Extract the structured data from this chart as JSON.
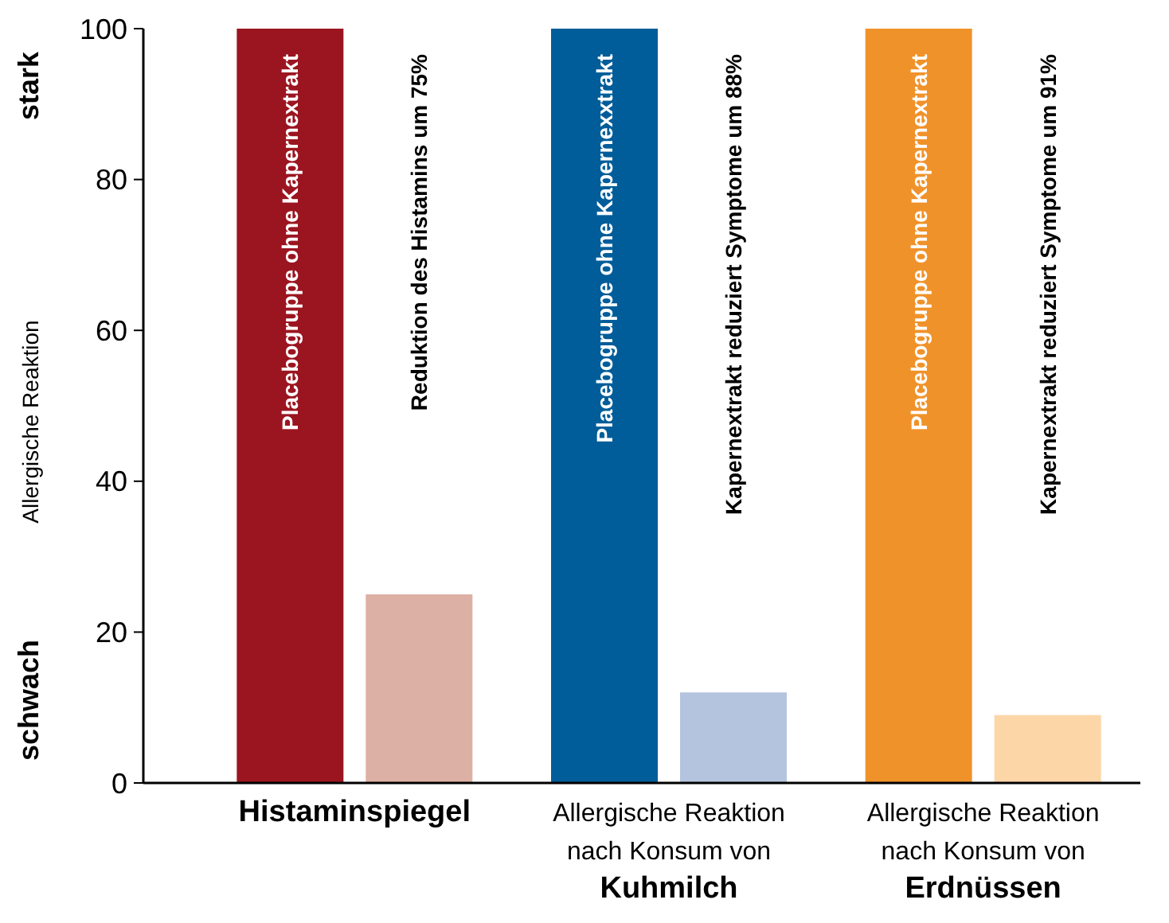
{
  "chart_data": {
    "type": "bar",
    "ylabel": "Allergische Reaktion",
    "categories": [
      "Histaminspiegel",
      "Allergische Reaktion\nnach Konsum von\nKuhmilch",
      "Allergische Reaktion\nnach Konsum von\nErdnüssen"
    ],
    "series": [
      {
        "colors": [
          "#9b1520",
          "#005d99",
          "#f0922a"
        ],
        "values": [
          100,
          100,
          100
        ]
      },
      {
        "colors": [
          "#dcb0a4",
          "#b4c4de",
          "#fdd6a8"
        ],
        "values": [
          25,
          12,
          9
        ]
      }
    ],
    "ylim": [
      0,
      100
    ],
    "yticks": [
      0,
      20,
      40,
      60,
      80,
      100
    ],
    "annotations": [
      "stark",
      "schwach",
      "Placebogruppe ohne Kapernextrakt",
      "Reduktion des Histamins um 75%",
      "Placebogruppe ohne Kapernexxtrakt",
      "Kapernextrakt reduziert Symptome um 88%",
      "Placebogruppe ohne Kapernextrakt",
      "Kapernextrakt reduziert Symptome um 91%"
    ]
  }
}
